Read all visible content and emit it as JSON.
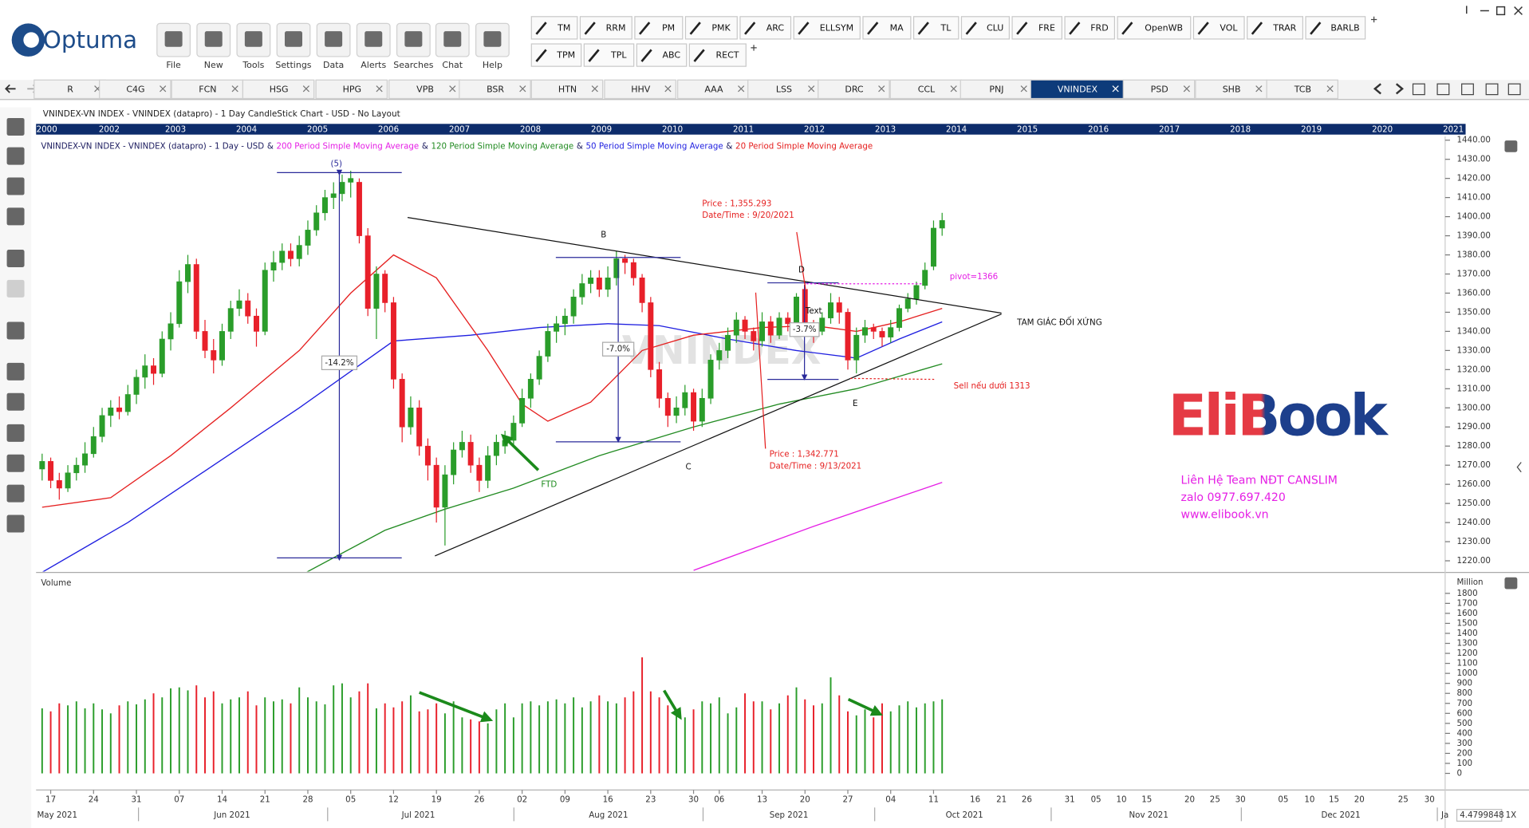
{
  "app": {
    "logo": "Optuma",
    "menu": [
      "File",
      "New",
      "Tools",
      "Settings",
      "Data",
      "Alerts",
      "Searches",
      "Chat",
      "Help"
    ],
    "tools_row1": [
      "TM",
      "RRM",
      "PM",
      "PMK",
      "ARC",
      "ELLSYM",
      "MA",
      "TL",
      "CLU",
      "FRE",
      "FRD",
      "OpenWB",
      "VOL",
      "TRAR",
      "BARLB"
    ],
    "tools_row2": [
      "TPM",
      "TPL",
      "ABC",
      "RECT"
    ],
    "tabs": [
      "R",
      "C4G",
      "FCN",
      "HSG",
      "HPG",
      "VPB",
      "BSR",
      "HTN",
      "HHV",
      "AAA",
      "LSS",
      "DRC",
      "CCL",
      "PNJ",
      "VNINDEX",
      "PSD",
      "SHB",
      "TCB"
    ],
    "active_tab": 14,
    "window_title": "VNINDEX-VN INDEX - VNINDEX (datapro) - 1 Day CandleStick Chart - USD - No Layout",
    "years": [
      2000,
      2002,
      2003,
      2004,
      2005,
      2006,
      2007,
      2008,
      2009,
      2010,
      2011,
      2012,
      2013,
      2014,
      2015,
      2016,
      2017,
      2018,
      2019,
      2020,
      2021
    ],
    "zoom_value": "4.4799848",
    "zoom_factor": "1X"
  },
  "chart_data": {
    "type": "candlestick",
    "legend_prefix": "VNINDEX-VN INDEX - VNINDEX (datapro) - 1 Day - USD",
    "legend_separator": "&",
    "categories": [
      null,
      "17",
      null,
      null,
      null,
      null,
      "24",
      null,
      null,
      null,
      null,
      "31",
      null,
      null,
      null,
      null,
      "07",
      null,
      null,
      null,
      null,
      "14",
      null,
      null,
      null,
      null,
      "21",
      null,
      null,
      null,
      null,
      "28",
      null,
      null,
      null,
      null,
      "05",
      null,
      null,
      null,
      null,
      "12",
      null,
      null,
      null,
      null,
      "19",
      null,
      null,
      null,
      null,
      "26",
      null,
      null,
      null,
      null,
      "02",
      null,
      null,
      null,
      null,
      "09",
      null,
      null,
      null,
      null,
      "16",
      null,
      null,
      null,
      null,
      "23",
      null,
      null,
      null,
      null,
      "30",
      null,
      null,
      "06",
      null,
      null,
      null,
      null,
      "13",
      null,
      null,
      null,
      null,
      "20",
      null,
      null,
      null,
      null,
      "27",
      null,
      null,
      null,
      null,
      "04",
      null,
      null,
      null,
      null,
      "11",
      null
    ],
    "future_labels": [
      "16",
      "21",
      "26",
      "31",
      "05",
      "10",
      "15",
      "20",
      "25",
      "30",
      "05",
      "10",
      "15",
      "20",
      "25",
      "30"
    ],
    "months": [
      "May 2021",
      "Jun 2021",
      "Jul 2021",
      "Aug 2021",
      "Sep 2021",
      "Oct 2021",
      "Nov 2021",
      "Dec 2021",
      "Ja"
    ],
    "open": [
      1268,
      1272,
      1262,
      1258,
      1266,
      1270,
      1276,
      1285,
      1296,
      1300,
      1298,
      1307,
      1316,
      1322,
      1318,
      1336,
      1344,
      1366,
      1375,
      1340,
      1330,
      1325,
      1340,
      1352,
      1356,
      1348,
      1340,
      1372,
      1376,
      1382,
      1378,
      1385,
      1393,
      1402,
      1410,
      1412,
      1418,
      1418,
      1390,
      1352,
      1370,
      1355,
      1315,
      1290,
      1300,
      1280,
      1270,
      1248,
      1265,
      1278,
      1282,
      1270,
      1262,
      1275,
      1280,
      1283,
      1292,
      1305,
      1315,
      1327,
      1340,
      1344,
      1348,
      1358,
      1365,
      1368,
      1362,
      1368,
      1378,
      1376,
      1368,
      1355,
      1320,
      1305,
      1296,
      1300,
      1308,
      1293,
      1305,
      1325,
      1330,
      1338,
      1346,
      1340,
      1335,
      1345,
      1338,
      1347,
      1344,
      1362,
      1342,
      1340,
      1347,
      1355,
      1350,
      1325,
      1338,
      1342,
      1340,
      1337,
      1342,
      1352,
      1357,
      1364,
      1374,
      1394
    ],
    "high": [
      1276,
      1274,
      1266,
      1270,
      1274,
      1282,
      1290,
      1300,
      1304,
      1306,
      1312,
      1320,
      1328,
      1326,
      1340,
      1350,
      1372,
      1380,
      1378,
      1346,
      1336,
      1344,
      1356,
      1362,
      1360,
      1352,
      1376,
      1382,
      1386,
      1386,
      1390,
      1398,
      1406,
      1414,
      1418,
      1422,
      1424,
      1420,
      1394,
      1374,
      1372,
      1358,
      1318,
      1306,
      1304,
      1284,
      1274,
      1270,
      1282,
      1288,
      1286,
      1274,
      1280,
      1286,
      1288,
      1296,
      1310,
      1318,
      1330,
      1344,
      1348,
      1352,
      1362,
      1370,
      1372,
      1372,
      1374,
      1382,
      1380,
      1378,
      1370,
      1358,
      1324,
      1308,
      1306,
      1312,
      1310,
      1310,
      1328,
      1334,
      1342,
      1350,
      1348,
      1342,
      1350,
      1348,
      1350,
      1350,
      1360,
      1366,
      1346,
      1350,
      1360,
      1358,
      1352,
      1342,
      1346,
      1344,
      1342,
      1346,
      1354,
      1360,
      1366,
      1376,
      1398,
      1402
    ],
    "low": [
      1262,
      1258,
      1252,
      1256,
      1262,
      1266,
      1274,
      1282,
      1290,
      1294,
      1296,
      1302,
      1310,
      1312,
      1316,
      1330,
      1342,
      1360,
      1336,
      1326,
      1318,
      1322,
      1336,
      1348,
      1344,
      1332,
      1338,
      1366,
      1372,
      1374,
      1374,
      1380,
      1390,
      1398,
      1404,
      1408,
      1410,
      1386,
      1348,
      1336,
      1350,
      1310,
      1282,
      1286,
      1275,
      1262,
      1240,
      1228,
      1260,
      1274,
      1266,
      1256,
      1258,
      1270,
      1276,
      1280,
      1290,
      1300,
      1312,
      1324,
      1334,
      1338,
      1344,
      1354,
      1360,
      1358,
      1358,
      1364,
      1370,
      1364,
      1350,
      1316,
      1300,
      1290,
      1292,
      1296,
      1288,
      1290,
      1302,
      1320,
      1326,
      1334,
      1336,
      1330,
      1332,
      1334,
      1336,
      1340,
      1340,
      1338,
      1334,
      1338,
      1344,
      1344,
      1320,
      1318,
      1334,
      1336,
      1332,
      1334,
      1340,
      1350,
      1354,
      1362,
      1372,
      1390
    ],
    "close": [
      1272,
      1262,
      1258,
      1266,
      1270,
      1276,
      1285,
      1296,
      1300,
      1298,
      1307,
      1316,
      1322,
      1318,
      1336,
      1344,
      1366,
      1375,
      1340,
      1330,
      1325,
      1340,
      1352,
      1356,
      1348,
      1340,
      1372,
      1376,
      1382,
      1378,
      1385,
      1393,
      1402,
      1410,
      1412,
      1418,
      1420,
      1390,
      1352,
      1370,
      1355,
      1315,
      1290,
      1300,
      1280,
      1270,
      1248,
      1265,
      1278,
      1282,
      1270,
      1262,
      1275,
      1282,
      1283,
      1292,
      1305,
      1315,
      1327,
      1340,
      1344,
      1348,
      1358,
      1365,
      1368,
      1362,
      1368,
      1378,
      1376,
      1368,
      1355,
      1320,
      1305,
      1296,
      1300,
      1308,
      1293,
      1305,
      1325,
      1330,
      1338,
      1346,
      1340,
      1335,
      1345,
      1338,
      1347,
      1344,
      1358,
      1342,
      1340,
      1347,
      1355,
      1350,
      1325,
      1338,
      1342,
      1340,
      1337,
      1342,
      1352,
      1357,
      1364,
      1372,
      1394,
      1398
    ],
    "up_color": "#2a9d2a",
    "down_color": "#e8202a",
    "moving_averages": [
      {
        "name": "200 Period Simple Moving Average",
        "color": "#e51ee5",
        "x": [
          76,
          90,
          105
        ],
        "values": [
          1215,
          1238,
          1261
        ]
      },
      {
        "name": "120 Period Simple Moving Average",
        "color": "#228b22",
        "x": [
          30,
          40,
          47,
          55,
          65,
          76,
          86,
          95,
          105
        ],
        "values": [
          1212,
          1236,
          1247,
          1258,
          1275,
          1290,
          1302,
          1310,
          1323
        ]
      },
      {
        "name": "50 Period Simple Moving Average",
        "color": "#1f1fe0",
        "x": [
          0,
          10,
          20,
          30,
          41,
          50,
          58,
          66,
          72,
          80,
          88,
          95,
          100,
          105
        ],
        "values": [
          1214,
          1240,
          1270,
          1300,
          1335,
          1338,
          1342,
          1344,
          1343,
          1336,
          1330,
          1326,
          1336,
          1345
        ]
      },
      {
        "name": "20 Period Simple Moving Average",
        "color": "#e52020",
        "x": [
          0,
          8,
          15,
          22,
          30,
          36,
          41,
          46,
          52,
          56,
          59,
          64,
          70,
          76,
          84,
          90,
          95,
          100,
          105
        ],
        "values": [
          1248,
          1253,
          1275,
          1300,
          1330,
          1360,
          1380,
          1368,
          1330,
          1302,
          1293,
          1303,
          1330,
          1338,
          1342,
          1343,
          1340,
          1345,
          1352
        ]
      }
    ],
    "ylim": [
      1214.4,
      1441.9
    ],
    "yticks": [
      {
        "value": 1220,
        "label": "1220.00"
      },
      {
        "value": 1230,
        "label": "1230.00"
      },
      {
        "value": 1240,
        "label": "1240.00"
      },
      {
        "value": 1250,
        "label": "1250.00"
      },
      {
        "value": 1260,
        "label": "1260.00"
      },
      {
        "value": 1270,
        "label": "1270.00"
      },
      {
        "value": 1280,
        "label": "1280.00"
      },
      {
        "value": 1290,
        "label": "1290.00"
      },
      {
        "value": 1300,
        "label": "1300.00"
      },
      {
        "value": 1310,
        "label": "1310.00"
      },
      {
        "value": 1320,
        "label": "1320.00"
      },
      {
        "value": 1330,
        "label": "1330.00"
      },
      {
        "value": 1340,
        "label": "1340.00"
      },
      {
        "value": 1350,
        "label": "1350.00"
      },
      {
        "value": 1360,
        "label": "1360.00"
      },
      {
        "value": 1370,
        "label": "1370.00"
      },
      {
        "value": 1380,
        "label": "1380.00"
      },
      {
        "value": 1390,
        "label": "1390.00"
      },
      {
        "value": 1400,
        "label": "1400.00"
      },
      {
        "value": 1410,
        "label": "1410.00"
      },
      {
        "value": 1420,
        "label": "1420.00"
      },
      {
        "value": 1430,
        "label": "1430.00"
      },
      {
        "value": 1440,
        "label": "1440.00"
      }
    ],
    "volume": {
      "title": "Volume",
      "unit": "Million",
      "values": [
        650,
        620,
        700,
        680,
        720,
        650,
        700,
        640,
        600,
        680,
        720,
        690,
        740,
        800,
        760,
        850,
        860,
        830,
        880,
        760,
        820,
        700,
        740,
        760,
        820,
        680,
        760,
        720,
        740,
        700,
        860,
        760,
        720,
        690,
        880,
        900,
        760,
        820,
        900,
        650,
        700,
        660,
        720,
        780,
        620,
        640,
        700,
        600,
        720,
        560,
        540,
        520,
        500,
        640,
        700,
        560,
        700,
        720,
        680,
        720,
        740,
        700,
        760,
        660,
        720,
        780,
        720,
        700,
        760,
        820,
        1160,
        820,
        760,
        680,
        640,
        560,
        640,
        720,
        700,
        760,
        600,
        660,
        800,
        720,
        720,
        640,
        700,
        780,
        860,
        740,
        680,
        700,
        960,
        780,
        620,
        580,
        640,
        560,
        700,
        620,
        680,
        720,
        660,
        700,
        720,
        740
      ],
      "ylim": [
        0,
        1960
      ],
      "yticks": [
        0,
        100,
        200,
        300,
        400,
        500,
        600,
        700,
        800,
        900,
        1000,
        1100,
        1200,
        1300,
        1400,
        1500,
        1600,
        1700,
        1800
      ]
    },
    "annotations": {
      "wave_count": "(5)",
      "drop_1": "-14.2%",
      "point_b": "B",
      "drop_2": "-7.0%",
      "point_c": "C",
      "price_d": "Price : 1,355.293",
      "date_d": "Date/Time : 9/20/2021",
      "point_d": "D",
      "text_tag": "Text",
      "drop_3": "-3.7%",
      "pivot": "pivot=1366",
      "pattern": "TAM GIÁC ĐỐI XỨNG",
      "sell": "Sell nếu dưới 1313",
      "point_e": "E",
      "price_e": "Price : 1,342.771",
      "date_e": "Date/Time : 9/13/2021",
      "ftd": "FTD",
      "watermark": "VNINDEX"
    }
  },
  "branding": {
    "logo": "EliBook",
    "contact": [
      "Liên Hệ Team NĐT CANSLIM",
      "zalo 0977.697.420",
      "www.elibook.vn"
    ]
  }
}
